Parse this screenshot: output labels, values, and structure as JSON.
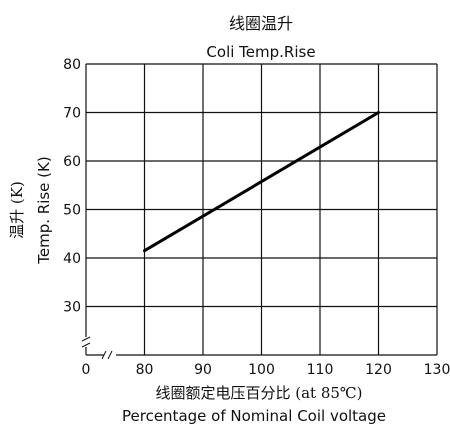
{
  "chart_data": {
    "type": "line",
    "title": "线圈温升",
    "subtitle": "Coli Temp.Rise",
    "xlabel": "线圈额定电压百分比 (at 85℃)",
    "xlabel_en": "Percentage of Nominal Coil voltage",
    "ylabel": "温升 (K)",
    "ylabel_en": "Temp. Rise (K)",
    "xlim": [
      0,
      130
    ],
    "ylim": [
      20,
      80
    ],
    "x_ticks": [
      "0",
      "80",
      "90",
      "100",
      "110",
      "120",
      "130"
    ],
    "y_ticks": [
      "30",
      "40",
      "50",
      "60",
      "70",
      "80"
    ],
    "axis_break": true,
    "grid": true,
    "series": [
      {
        "x": [
          80,
          120
        ],
        "y": [
          41.5,
          70
        ]
      }
    ]
  }
}
